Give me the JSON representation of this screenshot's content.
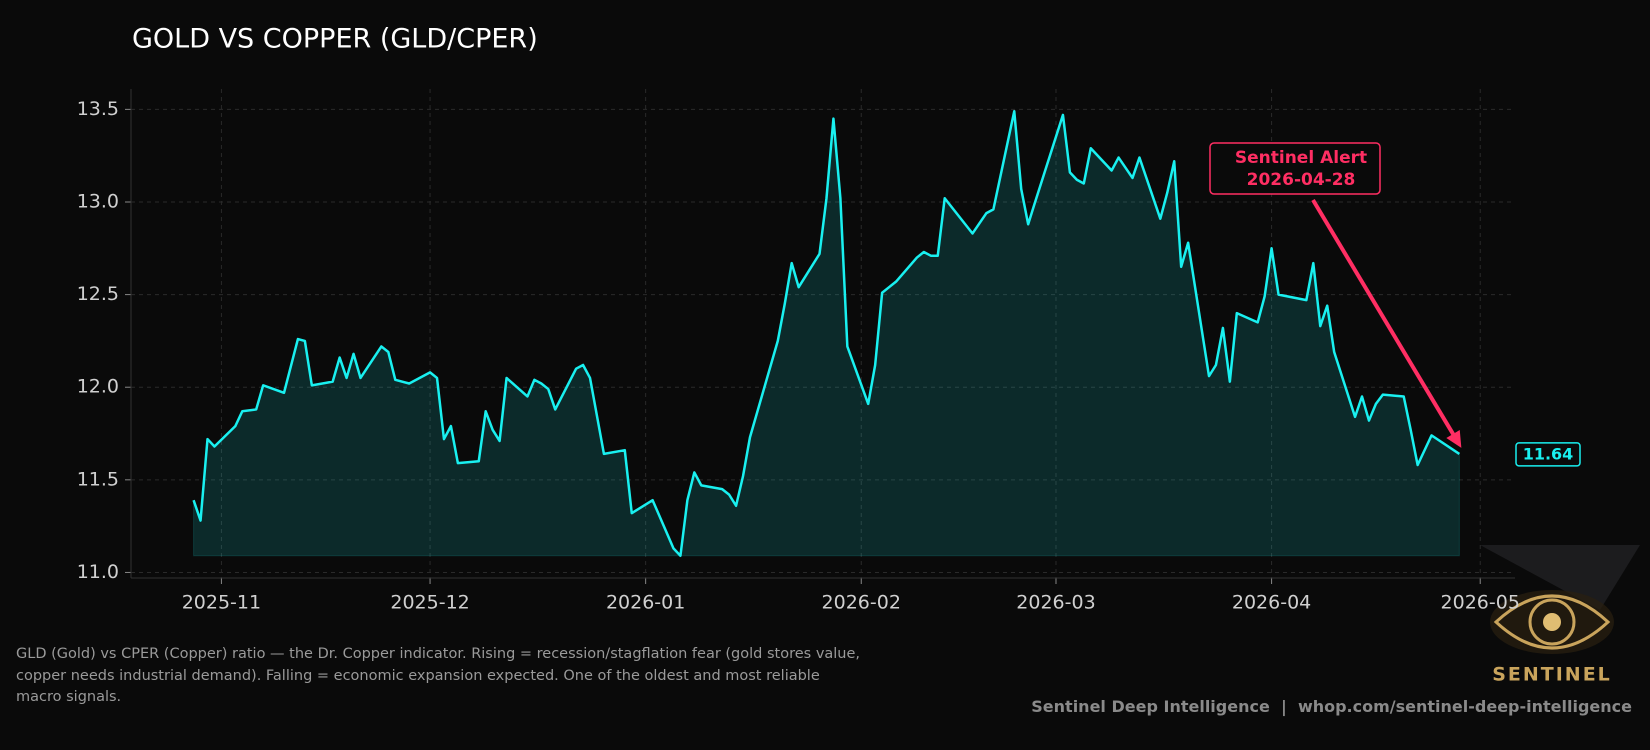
{
  "title": "GOLD VS COPPER (GLD/CPER)",
  "description": "GLD (Gold) vs CPER (Copper) ratio — the Dr. Copper indicator. Rising = recession/stagflation fear (gold stores value, copper needs industrial demand). Falling = economic expansion expected. One of the oldest and most reliable macro signals.",
  "footer": "Sentinel Deep Intelligence  |  whop.com/sentinel-deep-intelligence",
  "logo": "SENTINEL",
  "chart_data": {
    "type": "line",
    "color": "#19f0f0",
    "fill": true,
    "grid": true,
    "x": [
      "2025-10-28",
      "2025-10-29",
      "2025-10-30",
      "2025-10-31",
      "2025-11-03",
      "2025-11-04",
      "2025-11-06",
      "2025-11-07",
      "2025-11-10",
      "2025-11-12",
      "2025-11-13",
      "2025-11-14",
      "2025-11-17",
      "2025-11-18",
      "2025-11-19",
      "2025-11-20",
      "2025-11-21",
      "2025-11-24",
      "2025-11-25",
      "2025-11-26",
      "2025-11-28",
      "2025-12-01",
      "2025-12-02",
      "2025-12-03",
      "2025-12-04",
      "2025-12-05",
      "2025-12-08",
      "2025-12-09",
      "2025-12-10",
      "2025-12-11",
      "2025-12-12",
      "2025-12-15",
      "2025-12-16",
      "2025-12-17",
      "2025-12-18",
      "2025-12-19",
      "2025-12-22",
      "2025-12-23",
      "2025-12-24",
      "2025-12-26",
      "2025-12-29",
      "2025-12-30",
      "2026-01-02",
      "2026-01-05",
      "2026-01-06",
      "2026-01-07",
      "2026-01-08",
      "2026-01-09",
      "2026-01-12",
      "2026-01-13",
      "2026-01-14",
      "2026-01-15",
      "2026-01-16",
      "2026-01-20",
      "2026-01-21",
      "2026-01-22",
      "2026-01-23",
      "2026-01-26",
      "2026-01-27",
      "2026-01-28",
      "2026-01-29",
      "2026-01-30",
      "2026-02-02",
      "2026-02-03",
      "2026-02-04",
      "2026-02-05",
      "2026-02-06",
      "2026-02-09",
      "2026-02-10",
      "2026-02-11",
      "2026-02-12",
      "2026-02-13",
      "2026-02-17",
      "2026-02-19",
      "2026-02-20",
      "2026-02-23",
      "2026-02-24",
      "2026-02-25",
      "2026-02-26",
      "2026-03-02",
      "2026-03-03",
      "2026-03-04",
      "2026-03-05",
      "2026-03-06",
      "2026-03-09",
      "2026-03-10",
      "2026-03-12",
      "2026-03-13",
      "2026-03-16",
      "2026-03-17",
      "2026-03-18",
      "2026-03-19",
      "2026-03-20",
      "2026-03-23",
      "2026-03-24",
      "2026-03-25",
      "2026-03-26",
      "2026-03-27",
      "2026-03-30",
      "2026-03-31",
      "2026-04-01",
      "2026-04-02",
      "2026-04-06",
      "2026-04-07",
      "2026-04-08",
      "2026-04-09",
      "2026-04-10",
      "2026-04-13",
      "2026-04-14",
      "2026-04-15",
      "2026-04-16",
      "2026-04-17",
      "2026-04-20",
      "2026-04-21",
      "2026-04-22",
      "2026-04-24",
      "2026-04-28"
    ],
    "values": [
      11.39,
      11.28,
      11.72,
      11.68,
      11.79,
      11.87,
      11.88,
      12.01,
      11.97,
      12.26,
      12.25,
      12.01,
      12.03,
      12.16,
      12.05,
      12.18,
      12.05,
      12.22,
      12.19,
      12.04,
      12.02,
      12.08,
      12.05,
      11.72,
      11.79,
      11.59,
      11.6,
      11.87,
      11.77,
      11.71,
      12.05,
      11.95,
      12.04,
      12.02,
      11.99,
      11.88,
      12.1,
      12.12,
      12.05,
      11.64,
      11.66,
      11.32,
      11.39,
      11.13,
      11.09,
      11.39,
      11.54,
      11.47,
      11.45,
      11.42,
      11.36,
      11.52,
      11.73,
      12.25,
      12.45,
      12.67,
      12.54,
      12.72,
      13.02,
      13.45,
      13.02,
      12.22,
      11.91,
      12.12,
      12.51,
      12.54,
      12.57,
      12.7,
      12.73,
      12.71,
      12.71,
      13.02,
      12.83,
      12.94,
      12.96,
      13.49,
      13.07,
      12.88,
      13.0,
      13.47,
      13.16,
      13.12,
      13.1,
      13.29,
      13.17,
      13.24,
      13.13,
      13.24,
      12.91,
      13.05,
      13.22,
      12.65,
      12.78,
      12.06,
      12.12,
      12.32,
      12.03,
      12.4,
      12.35,
      12.49,
      12.75,
      12.5,
      12.47,
      12.67,
      12.33,
      12.44,
      12.19,
      11.84,
      11.95,
      11.82,
      11.91,
      11.96,
      11.95,
      11.77,
      11.58,
      11.74,
      11.64
    ],
    "xlim": [
      "2025-10-19",
      "2026-05-06"
    ],
    "xticks": [
      {
        "value": "2025-11-01",
        "label": "2025-11"
      },
      {
        "value": "2025-12-01",
        "label": "2025-12"
      },
      {
        "value": "2026-01-01",
        "label": "2026-01"
      },
      {
        "value": "2026-02-01",
        "label": "2026-02"
      },
      {
        "value": "2026-03-01",
        "label": "2026-03"
      },
      {
        "value": "2026-04-01",
        "label": "2026-04"
      },
      {
        "value": "2026-05-01",
        "label": "2026-05"
      }
    ],
    "ylim": [
      10.97,
      13.61
    ],
    "yticks": [
      {
        "value": 11,
        "label": "11.0"
      },
      {
        "value": 11.5,
        "label": "11.5"
      },
      {
        "value": 12,
        "label": "12.0"
      },
      {
        "value": 12.5,
        "label": "12.5"
      },
      {
        "value": 13,
        "label": "13.0"
      },
      {
        "value": 13.5,
        "label": "13.5"
      }
    ],
    "annotation": [
      "Sentinel Alert",
      "2026-04-28"
    ],
    "annotation_color": "#ff2e63"
  }
}
